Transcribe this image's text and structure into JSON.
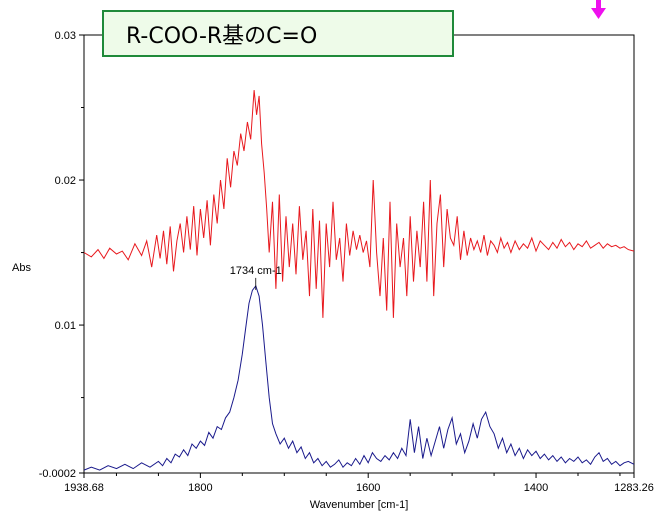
{
  "chart_data": {
    "type": "line",
    "title": "R-COO-R基のC=O",
    "xlabel": "Wavenumber [cm-1]",
    "ylabel": "Abs",
    "x_range": [
      1938.68,
      1283.26
    ],
    "x_reversed": true,
    "ylim": [
      -0.0002,
      0.03
    ],
    "x_ticks": [
      "1938.68",
      "1800",
      "1600",
      "1400",
      "1283.26"
    ],
    "x_tick_values": [
      1938.68,
      1800,
      1600,
      1400,
      1283.26
    ],
    "y_ticks": [
      "-0.0002",
      "0.01",
      "0.02",
      "0.03"
    ],
    "y_tick_values": [
      -0.0002,
      0.01,
      0.02,
      0.03
    ],
    "grid": false,
    "annotations": [
      {
        "text": "1734 cm-1",
        "x": 1734,
        "y": 0.0127
      }
    ],
    "series": [
      {
        "color": "#e8191e",
        "x": [
          1938.68,
          1930,
          1922,
          1915,
          1908,
          1900,
          1893,
          1886,
          1878,
          1870,
          1864,
          1858,
          1852,
          1848,
          1844,
          1840,
          1836,
          1832,
          1828,
          1824,
          1820,
          1816,
          1812,
          1808,
          1804,
          1800,
          1796,
          1792,
          1788,
          1784,
          1780,
          1776,
          1772,
          1768,
          1764,
          1760,
          1756,
          1752,
          1748,
          1744,
          1740,
          1736,
          1733,
          1730,
          1727,
          1724,
          1721,
          1718,
          1714,
          1710,
          1706,
          1702,
          1698,
          1694,
          1690,
          1686,
          1682,
          1678,
          1674,
          1670,
          1666,
          1662,
          1658,
          1654,
          1650,
          1646,
          1642,
          1638,
          1634,
          1630,
          1626,
          1622,
          1618,
          1614,
          1610,
          1606,
          1602,
          1598,
          1594,
          1590,
          1586,
          1582,
          1578,
          1574,
          1570,
          1566,
          1562,
          1558,
          1554,
          1550,
          1546,
          1542,
          1538,
          1534,
          1530,
          1526,
          1522,
          1518,
          1514,
          1510,
          1506,
          1502,
          1498,
          1494,
          1490,
          1486,
          1482,
          1478,
          1474,
          1470,
          1466,
          1462,
          1458,
          1454,
          1450,
          1446,
          1442,
          1438,
          1434,
          1430,
          1425,
          1420,
          1415,
          1410,
          1405,
          1400,
          1395,
          1390,
          1385,
          1380,
          1375,
          1370,
          1365,
          1360,
          1355,
          1350,
          1345,
          1340,
          1335,
          1330,
          1325,
          1320,
          1315,
          1310,
          1305,
          1300,
          1295,
          1290,
          1283.26
        ],
        "y": [
          0.015,
          0.0147,
          0.0152,
          0.0146,
          0.0153,
          0.0149,
          0.0151,
          0.0145,
          0.0156,
          0.0148,
          0.0158,
          0.014,
          0.0162,
          0.0146,
          0.0165,
          0.0142,
          0.0168,
          0.0137,
          0.0158,
          0.017,
          0.015,
          0.0175,
          0.0152,
          0.0182,
          0.0148,
          0.018,
          0.016,
          0.0186,
          0.0155,
          0.019,
          0.017,
          0.02,
          0.018,
          0.0215,
          0.0195,
          0.022,
          0.021,
          0.0232,
          0.022,
          0.024,
          0.0228,
          0.0262,
          0.0245,
          0.0258,
          0.0225,
          0.0205,
          0.018,
          0.015,
          0.0185,
          0.0125,
          0.019,
          0.013,
          0.0175,
          0.014,
          0.017,
          0.0135,
          0.0182,
          0.0145,
          0.0165,
          0.012,
          0.018,
          0.0125,
          0.0172,
          0.0105,
          0.017,
          0.014,
          0.0185,
          0.0145,
          0.016,
          0.013,
          0.017,
          0.0148,
          0.0165,
          0.0152,
          0.0162,
          0.015,
          0.0158,
          0.014,
          0.02,
          0.015,
          0.012,
          0.016,
          0.011,
          0.0185,
          0.0105,
          0.017,
          0.014,
          0.016,
          0.012,
          0.0175,
          0.013,
          0.0165,
          0.014,
          0.0185,
          0.013,
          0.02,
          0.012,
          0.017,
          0.019,
          0.014,
          0.018,
          0.016,
          0.0155,
          0.0175,
          0.0145,
          0.0165,
          0.0148,
          0.016,
          0.0152,
          0.0158,
          0.015,
          0.0162,
          0.0148,
          0.0158,
          0.0155,
          0.015,
          0.016,
          0.0153,
          0.0157,
          0.015,
          0.0158,
          0.0152,
          0.0156,
          0.0153,
          0.016,
          0.0151,
          0.0158,
          0.0155,
          0.0152,
          0.0157,
          0.0153,
          0.0159,
          0.0154,
          0.0157,
          0.0152,
          0.0156,
          0.0154,
          0.0158,
          0.0153,
          0.0155,
          0.0157,
          0.0153,
          0.0156,
          0.0154,
          0.0155,
          0.0153,
          0.0154,
          0.0152,
          0.0151
        ]
      },
      {
        "color": "#1a1a8c",
        "x": [
          1938.68,
          1930,
          1920,
          1910,
          1900,
          1890,
          1880,
          1870,
          1860,
          1850,
          1845,
          1840,
          1835,
          1830,
          1825,
          1820,
          1815,
          1810,
          1805,
          1800,
          1795,
          1790,
          1785,
          1780,
          1775,
          1770,
          1765,
          1760,
          1755,
          1750,
          1746,
          1742,
          1738,
          1734,
          1730,
          1726,
          1722,
          1718,
          1714,
          1710,
          1705,
          1700,
          1695,
          1690,
          1685,
          1680,
          1675,
          1670,
          1665,
          1660,
          1655,
          1650,
          1645,
          1640,
          1635,
          1630,
          1625,
          1620,
          1615,
          1610,
          1605,
          1600,
          1595,
          1590,
          1585,
          1580,
          1575,
          1570,
          1565,
          1560,
          1555,
          1550,
          1545,
          1540,
          1535,
          1530,
          1525,
          1520,
          1515,
          1510,
          1505,
          1500,
          1495,
          1490,
          1485,
          1480,
          1475,
          1470,
          1465,
          1460,
          1455,
          1450,
          1445,
          1440,
          1435,
          1430,
          1425,
          1420,
          1415,
          1410,
          1405,
          1400,
          1395,
          1390,
          1385,
          1380,
          1375,
          1370,
          1365,
          1360,
          1355,
          1350,
          1345,
          1340,
          1335,
          1330,
          1325,
          1320,
          1315,
          1310,
          1305,
          1300,
          1295,
          1290,
          1283.26
        ],
        "y": [
          0.0,
          0.0002,
          0.0,
          0.0003,
          0.0001,
          0.0004,
          0.0001,
          0.0005,
          0.0002,
          0.0006,
          0.0003,
          0.0008,
          0.0005,
          0.0011,
          0.0009,
          0.0014,
          0.001,
          0.0018,
          0.0015,
          0.002,
          0.0017,
          0.0026,
          0.0022,
          0.003,
          0.0028,
          0.0036,
          0.004,
          0.005,
          0.0062,
          0.008,
          0.0098,
          0.0115,
          0.0124,
          0.0127,
          0.012,
          0.01,
          0.0075,
          0.005,
          0.0032,
          0.0025,
          0.0018,
          0.0022,
          0.0015,
          0.002,
          0.0012,
          0.0016,
          0.0008,
          0.0012,
          0.0005,
          0.0008,
          0.0003,
          0.0006,
          0.0002,
          0.0004,
          0.0007,
          0.0002,
          0.0005,
          0.0003,
          0.0008,
          0.0004,
          0.001,
          0.0005,
          0.0012,
          0.0008,
          0.0006,
          0.001,
          0.0007,
          0.0012,
          0.0008,
          0.0015,
          0.001,
          0.0035,
          0.0012,
          0.003,
          0.0008,
          0.0022,
          0.001,
          0.002,
          0.003,
          0.0015,
          0.0028,
          0.0036,
          0.0018,
          0.0025,
          0.0012,
          0.002,
          0.0032,
          0.0022,
          0.0035,
          0.004,
          0.003,
          0.0025,
          0.0015,
          0.0022,
          0.0012,
          0.0018,
          0.001,
          0.0015,
          0.0008,
          0.0014,
          0.001,
          0.0013,
          0.0008,
          0.0011,
          0.0007,
          0.001,
          0.0006,
          0.0009,
          0.0005,
          0.0008,
          0.0006,
          0.0009,
          0.0005,
          0.0007,
          0.0004,
          0.0009,
          0.0012,
          0.0006,
          0.0008,
          0.0004,
          0.0006,
          0.0003,
          0.0005,
          0.0006,
          0.0004
        ]
      }
    ]
  },
  "marker_color": "#ee10ee"
}
